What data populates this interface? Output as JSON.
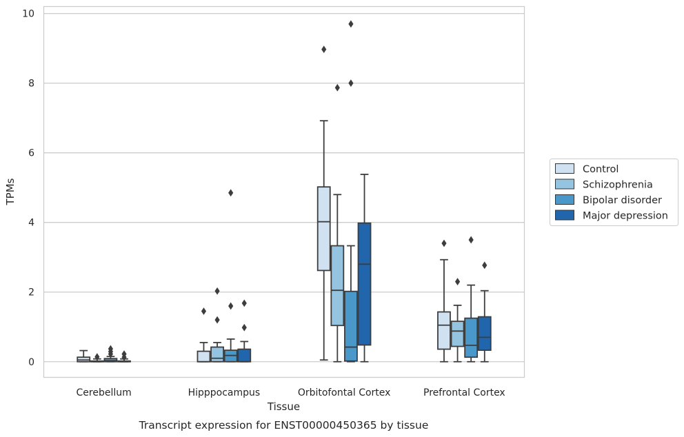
{
  "caption": "Transcript expression for ENST00000450365 by tissue",
  "chart_data": {
    "type": "box",
    "xlabel": "Tissue",
    "ylabel": "TPMs",
    "ylim": [
      -0.45,
      10.2
    ],
    "yticks": [
      "0",
      "2",
      "4",
      "6",
      "8",
      "10"
    ],
    "grid": true,
    "legend_position": "right",
    "categories": [
      "Cerebellum",
      "Hipppocampus",
      "Orbitofontal Cortex",
      "Prefrontal Cortex"
    ],
    "series": [
      {
        "name": "Control",
        "color": "#d0e1f2",
        "boxes": [
          {
            "min": 0,
            "q1": 0,
            "median": 0.05,
            "q3": 0.13,
            "max": 0.32,
            "outliers": []
          },
          {
            "min": 0,
            "q1": 0,
            "median": 0,
            "q3": 0.3,
            "max": 0.55,
            "outliers": [
              1.45
            ]
          },
          {
            "min": 0.05,
            "q1": 2.62,
            "median": 4.02,
            "q3": 5.02,
            "max": 6.92,
            "outliers": [
              8.97
            ]
          },
          {
            "min": 0,
            "q1": 0.36,
            "median": 1.05,
            "q3": 1.43,
            "max": 2.93,
            "outliers": [
              3.4
            ]
          }
        ]
      },
      {
        "name": "Schizophrenia",
        "color": "#94c4df",
        "boxes": [
          {
            "min": 0,
            "q1": 0,
            "median": 0,
            "q3": 0.02,
            "max": 0.08,
            "outliers": [
              0.14
            ]
          },
          {
            "min": 0,
            "q1": 0,
            "median": 0.1,
            "q3": 0.42,
            "max": 0.55,
            "outliers": [
              2.03,
              1.2
            ]
          },
          {
            "min": 0,
            "q1": 1.04,
            "median": 2.05,
            "q3": 3.33,
            "max": 4.8,
            "outliers": [
              7.87
            ]
          },
          {
            "min": 0,
            "q1": 0.44,
            "median": 0.88,
            "q3": 1.16,
            "max": 1.62,
            "outliers": [
              2.3
            ]
          }
        ]
      },
      {
        "name": "Bipolar disorder",
        "color": "#4a98c9",
        "boxes": [
          {
            "min": 0,
            "q1": 0,
            "median": 0.03,
            "q3": 0.09,
            "max": 0.15,
            "outliers": [
              0.22,
              0.29,
              0.37
            ]
          },
          {
            "min": 0,
            "q1": 0,
            "median": 0.18,
            "q3": 0.33,
            "max": 0.65,
            "outliers": [
              4.85,
              1.6
            ]
          },
          {
            "min": 0,
            "q1": 0.02,
            "median": 0.42,
            "q3": 2.02,
            "max": 3.33,
            "outliers": [
              9.7,
              8.0
            ]
          },
          {
            "min": 0,
            "q1": 0.13,
            "median": 0.47,
            "q3": 1.25,
            "max": 2.2,
            "outliers": [
              3.5
            ]
          }
        ]
      },
      {
        "name": "Major depression",
        "color": "#2166ac",
        "boxes": [
          {
            "min": 0,
            "q1": 0,
            "median": 0,
            "q3": 0.02,
            "max": 0.08,
            "outliers": [
              0.13,
              0.22
            ]
          },
          {
            "min": 0,
            "q1": 0,
            "median": 0,
            "q3": 0.36,
            "max": 0.58,
            "outliers": [
              1.68,
              0.98
            ]
          },
          {
            "min": 0,
            "q1": 0.48,
            "median": 2.8,
            "q3": 3.98,
            "max": 5.38,
            "outliers": []
          },
          {
            "min": 0,
            "q1": 0.33,
            "median": 0.7,
            "q3": 1.29,
            "max": 2.04,
            "outliers": [
              2.77
            ]
          }
        ]
      }
    ]
  }
}
